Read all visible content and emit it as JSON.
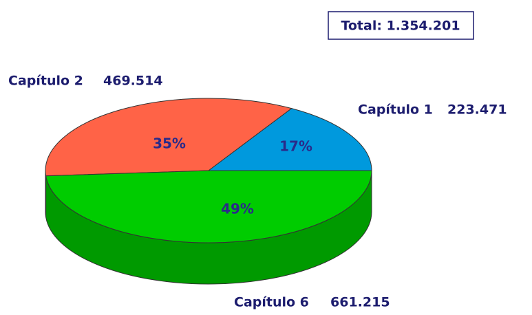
{
  "chart_data": {
    "type": "pie",
    "annotations": [
      "Total: 1.354.201"
    ],
    "categories": [
      "Capítulo 1",
      "Capítulo 2",
      "Capítulo 6"
    ],
    "values": [
      223471,
      469514,
      661215
    ],
    "value_labels": [
      "223.471",
      "469.514",
      "661.215"
    ],
    "percent_labels": [
      "17%",
      "35%",
      "49%"
    ],
    "colors": [
      "#0099dd",
      "#ff6347",
      "#00cc00"
    ],
    "side_colors": [
      "#0077aa",
      "#c8462f",
      "#009a00"
    ]
  }
}
